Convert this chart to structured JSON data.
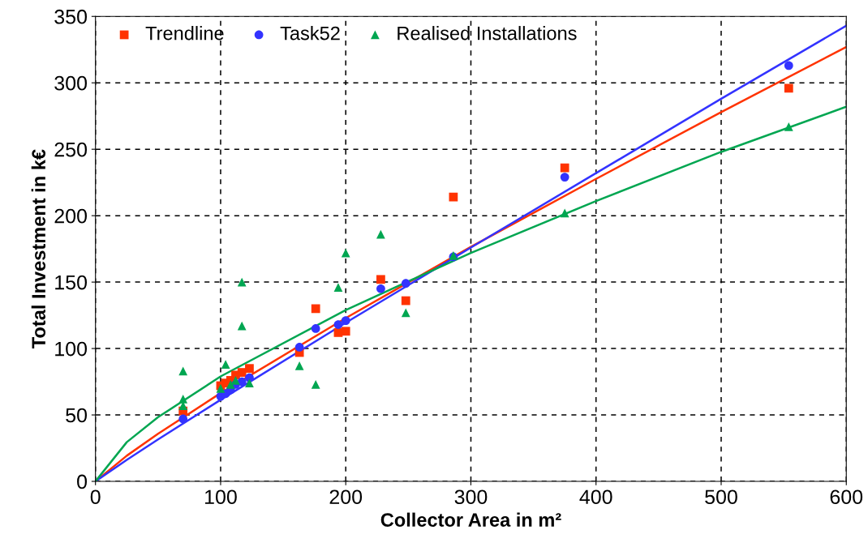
{
  "chart_data": {
    "type": "scatter",
    "xlabel": "Collector Area in m²",
    "ylabel": "Total Investment in k€",
    "xlim": [
      0,
      600
    ],
    "xticks": [
      0,
      100,
      200,
      300,
      400,
      500,
      600
    ],
    "ylim": [
      0,
      350
    ],
    "yticks": [
      0,
      50,
      100,
      150,
      200,
      250,
      300,
      350
    ],
    "grid": true,
    "legend": "top left",
    "series": [
      {
        "name": "Trendline",
        "color": "#ff3300",
        "marker": "square",
        "x": [
          70,
          100,
          104,
          108,
          112,
          117,
          123,
          163,
          176,
          194,
          200,
          228,
          248,
          286,
          375,
          554
        ],
        "values": [
          53,
          72,
          74,
          76,
          80,
          82,
          85,
          97,
          130,
          112,
          113,
          152,
          136,
          214,
          236,
          296
        ]
      },
      {
        "name": "Task52",
        "color": "#3333ff",
        "marker": "circle",
        "x": [
          70,
          100,
          104,
          108,
          112,
          117,
          123,
          163,
          176,
          194,
          200,
          228,
          248,
          286,
          375,
          554
        ],
        "values": [
          47,
          64,
          66,
          69,
          73,
          75,
          78,
          101,
          115,
          118,
          121,
          145,
          149,
          169,
          229,
          313
        ]
      },
      {
        "name": "Realised Installations",
        "color": "#00a651",
        "marker": "triangle",
        "x": [
          70,
          70,
          70,
          104,
          100,
          108,
          112,
          117,
          117,
          123,
          163,
          176,
          194,
          200,
          228,
          248,
          286,
          375,
          554
        ],
        "values": [
          83,
          62,
          57,
          88,
          70,
          73,
          76,
          117,
          150,
          74,
          87,
          73,
          146,
          172,
          186,
          127,
          170,
          202,
          267
        ]
      },
      {
        "type": "line",
        "color": "#ff3300",
        "x": [
          0,
          25,
          50,
          100,
          200,
          300,
          400,
          500,
          600
        ],
        "values": [
          0,
          19.3,
          35.8,
          66.4,
          122.9,
          176.5,
          227.7,
          277.9,
          327
        ]
      },
      {
        "type": "line",
        "color": "#3333ff",
        "x": [
          0,
          25,
          50,
          100,
          200,
          300,
          400,
          500,
          600
        ],
        "values": [
          0,
          16.2,
          31.6,
          61.4,
          119.4,
          176,
          232,
          288,
          343
        ]
      },
      {
        "type": "line",
        "color": "#00a651",
        "x": [
          0,
          25,
          50,
          100,
          200,
          300,
          400,
          500,
          600
        ],
        "values": [
          0,
          29.5,
          48.3,
          79,
          129,
          172,
          211,
          248,
          282
        ]
      }
    ]
  }
}
